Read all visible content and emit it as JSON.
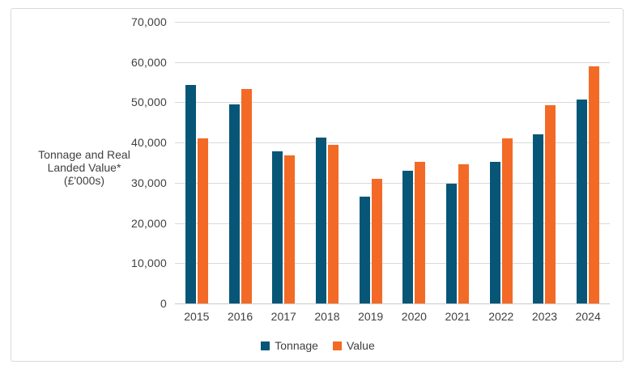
{
  "colors": {
    "tonnage_bar": "#075677",
    "value_bar": "#F36A26",
    "text": "#404040",
    "gridline": "#D9D9D9",
    "frame_border": "#D9D9D9",
    "background": "#FFFFFF"
  },
  "chart_data": {
    "type": "bar",
    "title": "",
    "categories": [
      "2015",
      "2016",
      "2017",
      "2018",
      "2019",
      "2020",
      "2021",
      "2022",
      "2023",
      "2024"
    ],
    "series": [
      {
        "name": "Tonnage",
        "color": "#075677",
        "values": [
          54300,
          49500,
          37900,
          41200,
          26500,
          32900,
          29800,
          35200,
          42000,
          50700
        ]
      },
      {
        "name": "Value",
        "color": "#F36A26",
        "values": [
          41000,
          53300,
          36900,
          39500,
          31000,
          35200,
          34600,
          41000,
          49200,
          58900
        ]
      }
    ],
    "xlabel": "",
    "ylabel": "Tonnage and Real Landed Value* (£'000s)",
    "ylabel_lines": [
      "Tonnage and Real",
      "Landed Value*",
      "(£'000s)"
    ],
    "ylim": [
      0,
      70000
    ],
    "yticks": [
      0,
      10000,
      20000,
      30000,
      40000,
      50000,
      60000,
      70000
    ],
    "ytick_labels": [
      "0",
      "10,000",
      "20,000",
      "30,000",
      "40,000",
      "50,000",
      "60,000",
      "70,000"
    ],
    "grid": true,
    "legend_position": "bottom-center"
  }
}
